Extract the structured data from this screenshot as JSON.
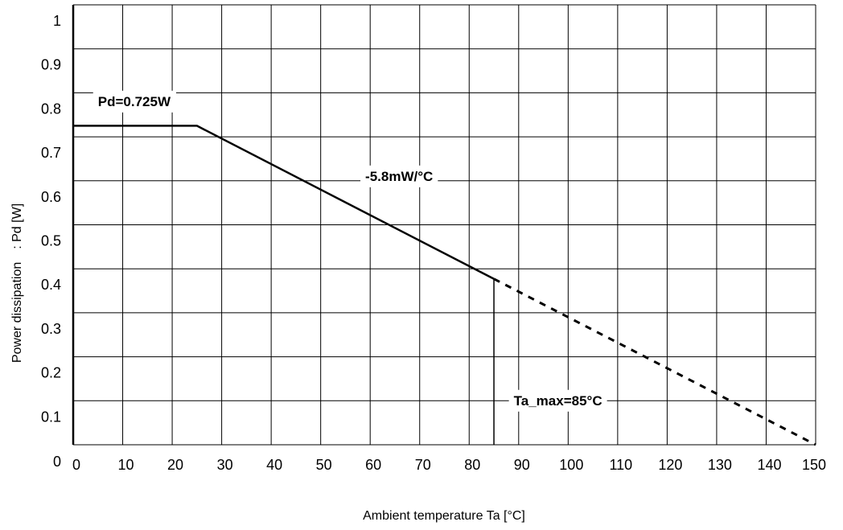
{
  "chart_data": {
    "type": "line",
    "xlabel": "Ambient temperature Ta [°C]",
    "ylabel": "Power dissipation　: Pd [W]",
    "xlim": [
      0,
      150
    ],
    "ylim": [
      0,
      1
    ],
    "x_ticks": [
      0,
      10,
      20,
      30,
      40,
      50,
      60,
      70,
      80,
      90,
      100,
      110,
      120,
      130,
      140,
      150
    ],
    "y_ticks": [
      0,
      0.1,
      0.2,
      0.3,
      0.4,
      0.5,
      0.6,
      0.7,
      0.8,
      0.9,
      1
    ],
    "y_tick_labels": [
      "0",
      "0.1",
      "0.2",
      "0.3",
      "0.4",
      "0.5",
      "0.6",
      "0.7",
      "0.8",
      "0.9",
      "1"
    ],
    "grid": true,
    "series": [
      {
        "style": "solid",
        "x": [
          0,
          25,
          85
        ],
        "y": [
          0.725,
          0.725,
          0.377
        ]
      },
      {
        "style": "dashed",
        "x": [
          85,
          150
        ],
        "y": [
          0.377,
          0.0
        ]
      },
      {
        "style": "solid",
        "x": [
          85,
          85
        ],
        "y": [
          0.377,
          0
        ]
      }
    ],
    "annotations": [
      {
        "text": "Pd=0.725W",
        "x": 5,
        "y": 0.77
      },
      {
        "text": "-5.8mW/°C",
        "x": 59,
        "y": 0.6
      },
      {
        "text": "Ta_max=85°C",
        "x": 89,
        "y": 0.09
      }
    ]
  }
}
